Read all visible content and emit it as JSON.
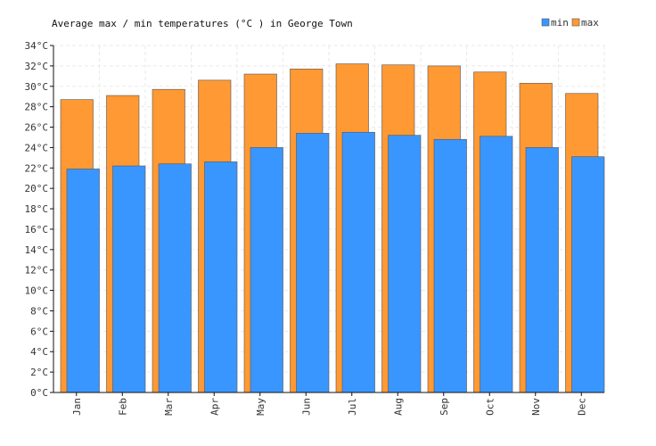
{
  "chart_data": {
    "type": "bar",
    "title": "Average max / min temperatures (°C ) in George Town",
    "categories": [
      "Jan",
      "Feb",
      "Mar",
      "Apr",
      "May",
      "Jun",
      "Jul",
      "Aug",
      "Sep",
      "Oct",
      "Nov",
      "Dec"
    ],
    "series": [
      {
        "name": "min",
        "color": "#3a96ff",
        "values": [
          21.9,
          22.2,
          22.4,
          22.6,
          24.0,
          25.4,
          25.5,
          25.2,
          24.8,
          25.1,
          24.0,
          23.1
        ]
      },
      {
        "name": "max",
        "color": "#ff9933",
        "values": [
          28.7,
          29.1,
          29.7,
          30.6,
          31.2,
          31.7,
          32.2,
          32.1,
          32.0,
          31.4,
          30.3,
          29.3
        ]
      }
    ],
    "ylim": [
      0,
      34
    ],
    "yticks": [
      "0°C",
      "2°C",
      "4°C",
      "6°C",
      "8°C",
      "10°C",
      "12°C",
      "14°C",
      "16°C",
      "18°C",
      "20°C",
      "22°C",
      "24°C",
      "26°C",
      "28°C",
      "30°C",
      "32°C",
      "34°C"
    ],
    "grid": true,
    "legend_position": "top-right"
  }
}
